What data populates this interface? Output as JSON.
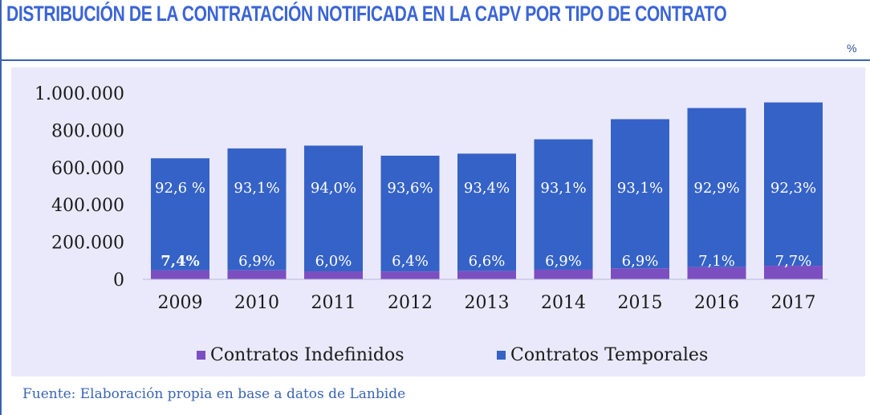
{
  "title": "DISTRIBUCIÓN DE LA CONTRATACIÓN NOTIFICADA EN LA CAPV POR TIPO DE CONTRATO",
  "unit": "%",
  "source": "Fuente: Elaboración propia en base a datos de Lanbide",
  "colors": {
    "temporales": "#3562c6",
    "indefinidos": "#7b4fc0",
    "background": "#e9e9fb",
    "accent": "#3a64d8"
  },
  "chart_data": {
    "type": "bar",
    "stacked": true,
    "categories": [
      "2009",
      "2010",
      "2011",
      "2012",
      "2013",
      "2014",
      "2015",
      "2016",
      "2017"
    ],
    "ylim": [
      0,
      1000000
    ],
    "yticks": [
      0,
      200000,
      400000,
      600000,
      800000,
      1000000
    ],
    "ytick_labels": [
      "0",
      "200.000",
      "400.000",
      "600.000",
      "800.000",
      "1.000.000"
    ],
    "legend_position": "bottom",
    "grid": false,
    "series": [
      {
        "name": "Contratos Indefinidos",
        "values": [
          48000,
          48500,
          43000,
          42500,
          44500,
          51900,
          59000,
          65500,
          73000
        ],
        "labels": [
          "7,4%",
          "6,9%",
          "6,0%",
          "6,4%",
          "6,6%",
          "6,9%",
          "6,9%",
          "7,1%",
          "7,7%"
        ]
      },
      {
        "name": "Contratos Temporales",
        "values": [
          602000,
          654500,
          675000,
          621500,
          630500,
          700100,
          801000,
          854500,
          877000
        ],
        "labels": [
          "92,6 %",
          "93,1%",
          "94,0%",
          "93,6%",
          "93,4%",
          "93,1%",
          "93,1%",
          "92,9%",
          "92,3%"
        ]
      }
    ]
  }
}
